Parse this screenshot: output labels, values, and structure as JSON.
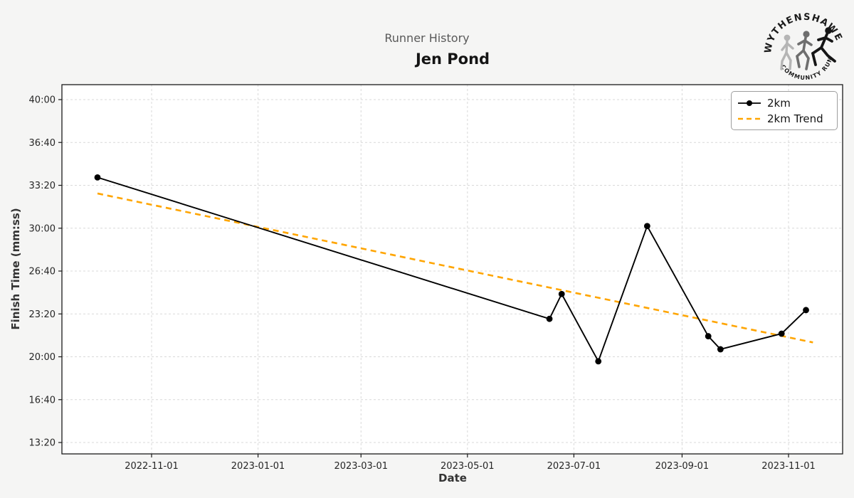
{
  "page": {
    "suptitle": "Runner History",
    "title": "Jen Pond"
  },
  "logo": {
    "top_text": "WYTHENSHAWE",
    "bottom_text": "COMMUNITY RUN",
    "figures": [
      "walking-runner",
      "jogging-runner",
      "sprinting-runner"
    ]
  },
  "chart_data": {
    "type": "line",
    "title": "Runner History",
    "subtitle": "Jen Pond",
    "xlabel": "Date",
    "ylabel": "Finish Time (mm:ss)",
    "grid": true,
    "legend_position": "top-right",
    "x_ticks": [
      "2022-11-01",
      "2023-01-01",
      "2023-03-01",
      "2023-05-01",
      "2023-07-01",
      "2023-09-01",
      "2023-11-01"
    ],
    "y_ticks": [
      {
        "label": "40:00",
        "seconds": 2400
      },
      {
        "label": "36:40",
        "seconds": 2200
      },
      {
        "label": "33:20",
        "seconds": 2000
      },
      {
        "label": "30:00",
        "seconds": 1800
      },
      {
        "label": "26:40",
        "seconds": 1600
      },
      {
        "label": "23:20",
        "seconds": 1400
      },
      {
        "label": "20:00",
        "seconds": 1200
      },
      {
        "label": "16:40",
        "seconds": 1000
      },
      {
        "label": "13:20",
        "seconds": 800
      }
    ],
    "y_axis_range_seconds": [
      680,
      2520
    ],
    "colors": {
      "line": "#000000",
      "trend": "#FFA500",
      "grid": "#d9d9d9",
      "plot_bg": "#ffffff",
      "fig_bg": "#f5f5f4"
    },
    "series": [
      {
        "name": "2km",
        "style": "solid-with-markers",
        "color": "#000000",
        "points": [
          {
            "date": "2022-10-01",
            "time": "33:57",
            "seconds": 2037
          },
          {
            "date": "2023-06-17",
            "time": "22:57",
            "seconds": 1377
          },
          {
            "date": "2023-06-24",
            "time": "24:53",
            "seconds": 1493
          },
          {
            "date": "2023-07-15",
            "time": "19:39",
            "seconds": 1179
          },
          {
            "date": "2023-08-12",
            "time": "30:10",
            "seconds": 1810
          },
          {
            "date": "2023-09-16",
            "time": "21:36",
            "seconds": 1296
          },
          {
            "date": "2023-09-23",
            "time": "20:35",
            "seconds": 1235
          },
          {
            "date": "2023-10-28",
            "time": "21:48",
            "seconds": 1308
          },
          {
            "date": "2023-11-11",
            "time": "23:38",
            "seconds": 1418
          }
        ]
      },
      {
        "name": "2km Trend",
        "style": "dashed",
        "color": "#FFA500",
        "points": [
          {
            "date": "2022-10-01",
            "time": "32:42",
            "seconds": 1962
          },
          {
            "date": "2023-11-15",
            "time": "21:07",
            "seconds": 1267
          }
        ]
      }
    ]
  }
}
